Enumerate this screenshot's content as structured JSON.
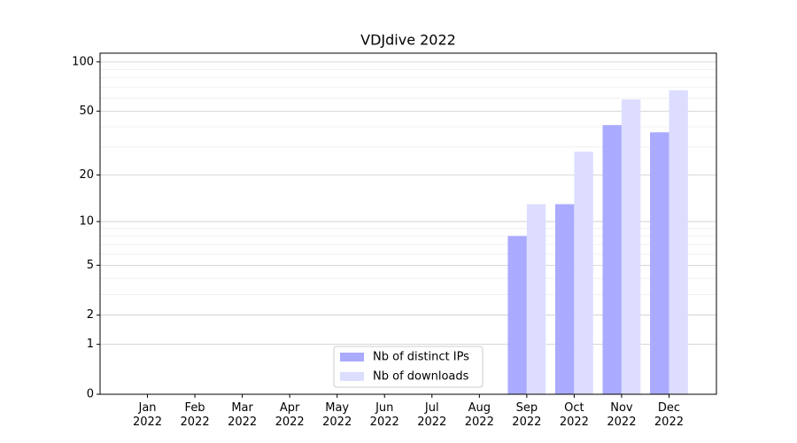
{
  "chart_data": {
    "type": "bar",
    "title": "VDJdive 2022",
    "categories": [
      "Jan 2022",
      "Feb 2022",
      "Mar 2022",
      "Apr 2022",
      "May 2022",
      "Jun 2022",
      "Jul 2022",
      "Aug 2022",
      "Sep 2022",
      "Oct 2022",
      "Nov 2022",
      "Dec 2022"
    ],
    "series": [
      {
        "name": "Nb of distinct IPs",
        "color": "#aaaaff",
        "values": [
          0,
          0,
          0,
          0,
          0,
          0,
          0,
          0,
          8,
          13,
          41,
          37
        ]
      },
      {
        "name": "Nb of downloads",
        "color": "#ddddff",
        "values": [
          0,
          0,
          0,
          0,
          0,
          0,
          0,
          0,
          13,
          28,
          59,
          67
        ]
      }
    ],
    "y_scale": "log(x+1)",
    "ylim": [
      0,
      113
    ],
    "yticks": [
      0,
      1,
      2,
      5,
      10,
      20,
      50,
      100
    ],
    "minor_grid": [
      3,
      4,
      6,
      7,
      8,
      9,
      30,
      40,
      60,
      70,
      80,
      90
    ],
    "grid": true,
    "legend_position": "lower center"
  }
}
